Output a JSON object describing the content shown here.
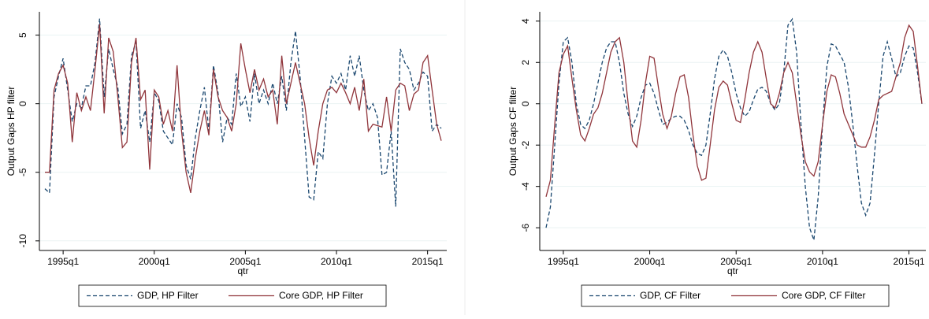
{
  "chart_data": [
    {
      "type": "line",
      "ylabel": "Output Gaps HP filter",
      "xlabel": "qtr",
      "x": [
        "1994q1",
        "1994q2",
        "1994q3",
        "1994q4",
        "1995q1",
        "1995q2",
        "1995q3",
        "1995q4",
        "1996q1",
        "1996q2",
        "1996q3",
        "1996q4",
        "1997q1",
        "1997q2",
        "1997q3",
        "1997q4",
        "1998q1",
        "1998q2",
        "1998q3",
        "1998q4",
        "1999q1",
        "1999q2",
        "1999q3",
        "1999q4",
        "2000q1",
        "2000q2",
        "2000q3",
        "2000q4",
        "2001q1",
        "2001q2",
        "2001q3",
        "2001q4",
        "2002q1",
        "2002q2",
        "2002q3",
        "2002q4",
        "2003q1",
        "2003q2",
        "2003q3",
        "2003q4",
        "2004q1",
        "2004q2",
        "2004q3",
        "2004q4",
        "2005q1",
        "2005q2",
        "2005q3",
        "2005q4",
        "2006q1",
        "2006q2",
        "2006q3",
        "2006q4",
        "2007q1",
        "2007q2",
        "2007q3",
        "2007q4",
        "2008q1",
        "2008q2",
        "2008q3",
        "2008q4",
        "2009q1",
        "2009q2",
        "2009q3",
        "2009q4",
        "2010q1",
        "2010q2",
        "2010q3",
        "2010q4",
        "2011q1",
        "2011q2",
        "2011q3",
        "2011q4",
        "2012q1",
        "2012q2",
        "2012q3",
        "2012q4",
        "2013q1",
        "2013q2",
        "2013q3",
        "2013q4",
        "2014q1",
        "2014q2",
        "2014q3",
        "2014q4",
        "2015q1",
        "2015q2",
        "2015q3",
        "2015q4"
      ],
      "xticks": [
        "1995q1",
        "2000q1",
        "2005q1",
        "2010q1",
        "2015q1"
      ],
      "ylim": [
        -10.7,
        6.7
      ],
      "yticks": [
        -10,
        -5,
        0,
        5
      ],
      "grid": true,
      "series": [
        {
          "name": "GDP, HP Filter",
          "color": "#1a476f",
          "line_style": "dashed",
          "values": [
            -6.2,
            -6.5,
            0.5,
            2.0,
            3.3,
            1.0,
            -1.3,
            0.0,
            -0.3,
            1.3,
            1.3,
            3.0,
            6.2,
            0.5,
            4.0,
            2.5,
            1.2,
            -2.2,
            -1.5,
            3.5,
            4.5,
            -1.8,
            -0.5,
            -2.8,
            0.8,
            0.2,
            -2.0,
            -2.5,
            -3.0,
            0.0,
            -1.0,
            -4.5,
            -5.5,
            -2.5,
            -0.5,
            1.2,
            -2.0,
            2.8,
            0.8,
            -2.8,
            -1.0,
            -1.5,
            2.2,
            -0.2,
            0.5,
            -1.3,
            2.2,
            0.0,
            1.0,
            0.0,
            1.5,
            0.0,
            2.0,
            -0.5,
            3.0,
            5.3,
            2.0,
            -2.5,
            -6.8,
            -7.0,
            -3.5,
            -4.0,
            0.0,
            2.0,
            1.5,
            2.2,
            1.0,
            3.5,
            2.0,
            3.5,
            1.0,
            -0.5,
            0.0,
            -1.0,
            -5.2,
            -5.0,
            -2.0,
            -7.5,
            4.0,
            3.0,
            2.5,
            1.0,
            1.5,
            2.3,
            2.0,
            -2.0,
            -1.5,
            -1.8
          ]
        },
        {
          "name": "Core GDP, HP Filter",
          "color": "#90353b",
          "line_style": "solid",
          "values": [
            -5.0,
            -5.0,
            1.0,
            2.2,
            2.8,
            1.5,
            -2.8,
            0.8,
            -0.5,
            0.5,
            -0.5,
            2.5,
            5.8,
            -0.7,
            4.8,
            3.8,
            0.5,
            -3.2,
            -2.8,
            3.0,
            4.8,
            0.3,
            1.0,
            -4.8,
            1.0,
            0.5,
            -1.5,
            -0.5,
            -2.0,
            2.8,
            -2.0,
            -5.0,
            -6.5,
            -4.0,
            -2.0,
            -0.5,
            -2.3,
            2.5,
            0.5,
            -0.5,
            -1.0,
            -2.0,
            0.0,
            4.4,
            2.5,
            0.8,
            2.5,
            1.0,
            1.8,
            0.5,
            1.0,
            -1.5,
            3.5,
            0.0,
            1.5,
            3.0,
            1.5,
            0.0,
            -2.5,
            -4.5,
            -2.0,
            0.0,
            1.0,
            1.2,
            0.8,
            1.5,
            0.8,
            0.0,
            1.2,
            -0.5,
            1.8,
            -2.0,
            -1.5,
            -1.6,
            -1.7,
            0.5,
            -2.0,
            1.0,
            1.5,
            1.3,
            -0.5,
            0.7,
            1.0,
            3.0,
            3.5,
            1.0,
            -1.5,
            -2.7
          ]
        }
      ]
    },
    {
      "type": "line",
      "ylabel": "Output Gaps CF filter",
      "xlabel": "qtr",
      "x": [
        "1994q1",
        "1994q2",
        "1994q3",
        "1994q4",
        "1995q1",
        "1995q2",
        "1995q3",
        "1995q4",
        "1996q1",
        "1996q2",
        "1996q3",
        "1996q4",
        "1997q1",
        "1997q2",
        "1997q3",
        "1997q4",
        "1998q1",
        "1998q2",
        "1998q3",
        "1998q4",
        "1999q1",
        "1999q2",
        "1999q3",
        "1999q4",
        "2000q1",
        "2000q2",
        "2000q3",
        "2000q4",
        "2001q1",
        "2001q2",
        "2001q3",
        "2001q4",
        "2002q1",
        "2002q2",
        "2002q3",
        "2002q4",
        "2003q1",
        "2003q2",
        "2003q3",
        "2003q4",
        "2004q1",
        "2004q2",
        "2004q3",
        "2004q4",
        "2005q1",
        "2005q2",
        "2005q3",
        "2005q4",
        "2006q1",
        "2006q2",
        "2006q3",
        "2006q4",
        "2007q1",
        "2007q2",
        "2007q3",
        "2007q4",
        "2008q1",
        "2008q2",
        "2008q3",
        "2008q4",
        "2009q1",
        "2009q2",
        "2009q3",
        "2009q4",
        "2010q1",
        "2010q2",
        "2010q3",
        "2010q4",
        "2011q1",
        "2011q2",
        "2011q3",
        "2011q4",
        "2012q1",
        "2012q2",
        "2012q3",
        "2012q4",
        "2013q1",
        "2013q2",
        "2013q3",
        "2013q4",
        "2014q1",
        "2014q2",
        "2014q3",
        "2014q4",
        "2015q1",
        "2015q2",
        "2015q3",
        "2015q4"
      ],
      "xticks": [
        "1995q1",
        "2000q1",
        "2005q1",
        "2010q1",
        "2015q1"
      ],
      "ylim": [
        -7.1,
        4.45
      ],
      "yticks": [
        -6,
        -4,
        -2,
        0,
        2,
        4
      ],
      "grid": true,
      "series": [
        {
          "name": "GDP, CF Filter",
          "color": "#1a476f",
          "line_style": "dashed",
          "values": [
            -6.0,
            -5.0,
            -2.0,
            1.0,
            3.0,
            3.2,
            2.0,
            0.0,
            -1.0,
            -1.2,
            -0.8,
            0.0,
            1.0,
            2.0,
            2.7,
            3.0,
            3.0,
            2.0,
            0.5,
            -0.5,
            -1.1,
            -0.6,
            0.3,
            0.9,
            1.0,
            0.5,
            -0.3,
            -1.0,
            -0.9,
            -0.7,
            -0.6,
            -0.6,
            -0.8,
            -1.3,
            -2.0,
            -2.4,
            -2.5,
            -2.0,
            -0.5,
            1.2,
            2.3,
            2.6,
            2.3,
            1.5,
            0.5,
            -0.2,
            -0.6,
            -0.4,
            0.2,
            0.7,
            0.8,
            0.6,
            0.0,
            -0.3,
            0.0,
            1.5,
            3.8,
            4.1,
            2.5,
            -1.0,
            -4.0,
            -6.0,
            -6.6,
            -4.5,
            -1.0,
            1.8,
            2.9,
            2.8,
            2.4,
            2.0,
            0.8,
            -1.0,
            -3.0,
            -4.8,
            -5.4,
            -4.8,
            -2.5,
            0.0,
            2.3,
            3.0,
            2.2,
            1.3,
            1.5,
            2.3,
            2.8,
            2.7,
            1.5,
            0.0
          ]
        },
        {
          "name": "Core GDP, CF Filter",
          "color": "#90353b",
          "line_style": "solid",
          "values": [
            -4.5,
            -3.7,
            -1.0,
            1.5,
            2.4,
            2.8,
            1.2,
            -0.3,
            -1.5,
            -1.8,
            -1.2,
            -0.5,
            -0.2,
            0.5,
            1.5,
            2.5,
            3.0,
            3.2,
            2.0,
            0.0,
            -1.8,
            -2.1,
            -0.8,
            1.0,
            2.3,
            2.2,
            0.8,
            -0.5,
            -1.2,
            -0.6,
            0.5,
            1.3,
            1.4,
            0.3,
            -1.5,
            -3.0,
            -3.7,
            -3.6,
            -2.0,
            -0.3,
            0.8,
            1.1,
            0.9,
            0.0,
            -0.8,
            -0.9,
            0.2,
            1.5,
            2.5,
            3.0,
            2.5,
            1.2,
            0.0,
            -0.2,
            0.5,
            1.5,
            2.0,
            1.5,
            0.0,
            -1.5,
            -2.8,
            -3.3,
            -3.5,
            -2.8,
            -1.0,
            0.6,
            1.4,
            1.3,
            0.5,
            -0.5,
            -1.0,
            -1.5,
            -2.0,
            -2.1,
            -2.1,
            -1.6,
            -0.8,
            0.2,
            0.4,
            0.5,
            0.6,
            1.3,
            2.0,
            3.2,
            3.8,
            3.5,
            1.8,
            0.0
          ]
        }
      ]
    }
  ]
}
